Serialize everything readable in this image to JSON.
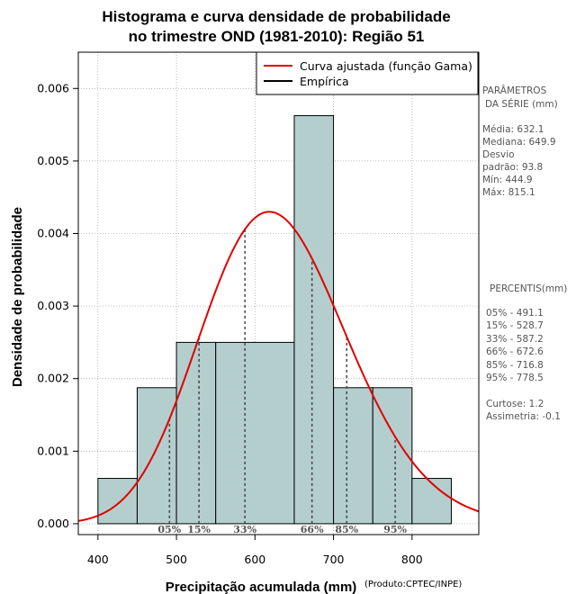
{
  "chart_data": {
    "type": "histogram",
    "title_line1": "Histograma e curva densidade de probabilidade",
    "title_line2": "no trimestre OND (1981-2010): Região 51",
    "xlabel": "Precipitação acumulada (mm)",
    "ylabel": "Densidade de probabilidade",
    "credit": "(Produto:CPTEC/INPE)",
    "xlim": [
      375,
      885
    ],
    "ylim": [
      -0.00015,
      0.0065
    ],
    "xticks": [
      400,
      500,
      600,
      700,
      800
    ],
    "xtick_labels": [
      "400",
      "500",
      "600",
      "700",
      "800"
    ],
    "yticks": [
      0,
      0.001,
      0.002,
      0.003,
      0.004,
      0.005,
      0.006
    ],
    "ytick_labels": [
      "0.000",
      "0.001",
      "0.002",
      "0.003",
      "0.004",
      "0.005",
      "0.006"
    ],
    "bins": [
      {
        "start": 400,
        "end": 450,
        "density": 0.000625
      },
      {
        "start": 450,
        "end": 500,
        "density": 0.001875
      },
      {
        "start": 500,
        "end": 550,
        "density": 0.0025
      },
      {
        "start": 550,
        "end": 650,
        "density": 0.0025
      },
      {
        "start": 650,
        "end": 700,
        "density": 0.005625
      },
      {
        "start": 700,
        "end": 750,
        "density": 0.001875
      },
      {
        "start": 750,
        "end": 800,
        "density": 0.001875
      },
      {
        "start": 800,
        "end": 850,
        "density": 0.000625
      }
    ],
    "fitted_curve": {
      "name": "Curva ajustada (função Gama)",
      "color": "#e00000",
      "distribution": "gamma",
      "mean": 632.1,
      "sd": 93.8,
      "peak_density": 0.0043
    },
    "empirical": {
      "name": "Empírica",
      "color": "#000000"
    },
    "percentiles": [
      {
        "label": "05%",
        "value": 491.1
      },
      {
        "label": "15%",
        "value": 528.7
      },
      {
        "label": "33%",
        "value": 587.2
      },
      {
        "label": "66%",
        "value": 672.6
      },
      {
        "label": "85%",
        "value": 716.8
      },
      {
        "label": "95%",
        "value": 778.5
      }
    ],
    "colors": {
      "bar_fill": "#b4cecd",
      "bar_stroke": "#000000",
      "grid": "#aaaaaa",
      "dashed": "#444444"
    }
  },
  "sidebar": {
    "params_title_1": "PARÂMETROS",
    "params_title_2": "DA SÉRIE (mm)",
    "media": "Média:  632.1",
    "mediana": "Mediana:  649.9",
    "desvio_1": "Desvio",
    "desvio_2": "padrão:  93.8",
    "min": "Mín:  444.9",
    "max": "Máx:  815.1",
    "percentis_title": "PERCENTIS(mm)",
    "p05": "05% -  491.1",
    "p15": "15% -  528.7",
    "p33": "33% -  587.2",
    "p66": "66% -  672.6",
    "p85": "85% -  716.8",
    "p95": "95% -  778.5",
    "curtose": "Curtose:  1.2",
    "assimetria": "Assimetria:  -0.1"
  }
}
